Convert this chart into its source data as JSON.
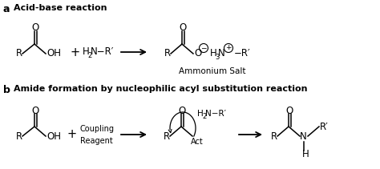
{
  "bg_color": "#ffffff",
  "label_a": "a",
  "label_b": "b",
  "title_a": "Acid-base reaction",
  "title_b": "Amide formation by nucleophilic acyl substitution reaction",
  "ammonium_salt": "Ammonium Salt",
  "fs_title": 8.0,
  "fs_label": 9.0,
  "fs_chem": 8.5,
  "fs_sub": 6.0,
  "fs_small": 7.5,
  "lw": 1.1
}
